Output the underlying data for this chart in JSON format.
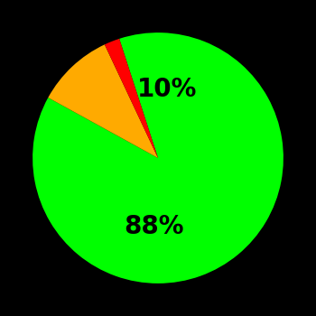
{
  "slices": [
    88,
    10,
    2
  ],
  "colors": [
    "#00ff00",
    "#ffaa00",
    "#ff0000"
  ],
  "labels": [
    "88%",
    "10%",
    ""
  ],
  "background_color": "#000000",
  "text_color": "#000000",
  "font_size": 20,
  "font_weight": "bold",
  "startangle": -252,
  "label_distances": [
    0.55,
    0.55,
    0.0
  ],
  "counterclock": false
}
